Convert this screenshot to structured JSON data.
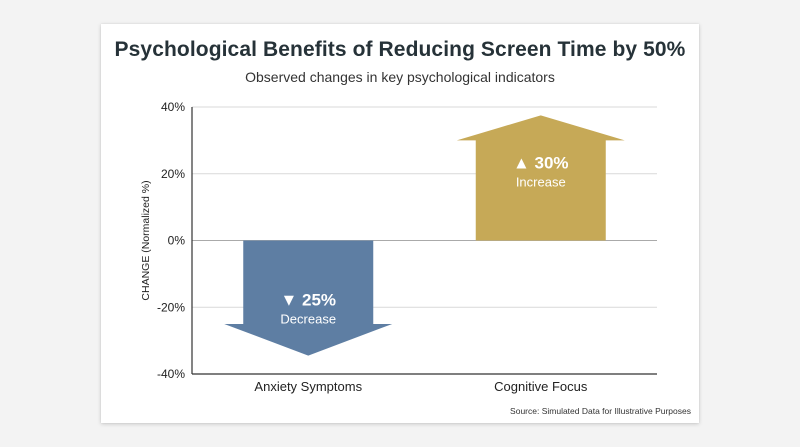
{
  "title": "Psychological Benefits of Reducing Screen Time by 50%",
  "subtitle": "Observed changes in key psychological indicators",
  "source": "Source: Simulated Data for Illustrative Purposes",
  "chart_data": {
    "type": "bar",
    "title": "Psychological Benefits of Reducing Screen Time by 50%",
    "subtitle": "Observed changes in key psychological indicators",
    "xlabel": "",
    "ylabel": "CHANGE (Normalized %)",
    "ylim": [
      -40,
      40
    ],
    "yticks": [
      40,
      20,
      0,
      -20,
      -40
    ],
    "ytick_labels": [
      "40%",
      "20%",
      "0%",
      "-20%",
      "-40%"
    ],
    "grid": true,
    "categories": [
      "Anxiety Symptoms",
      "Cognitive Focus"
    ],
    "values": [
      -25,
      30
    ],
    "bar_value_labels": [
      "▼ 25%",
      "▲ 30%"
    ],
    "bar_sub_labels": [
      "Decrease",
      "Increase"
    ],
    "colors": [
      "#5e7ea3",
      "#c6a957"
    ],
    "arrow_tip_values": [
      -34.5,
      37.5
    ],
    "source": "Source: Simulated Data for Illustrative Purposes"
  }
}
